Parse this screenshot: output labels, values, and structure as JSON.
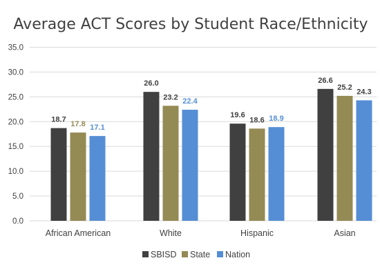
{
  "chart_data": {
    "type": "bar",
    "title": "Average ACT Scores by Student Race/Ethnicity",
    "categories": [
      "African American",
      "White",
      "Hispanic",
      "Asian"
    ],
    "series": [
      {
        "name": "SBISD",
        "values": [
          18.7,
          26.0,
          19.6,
          26.6
        ],
        "labels": [
          "18.7",
          "26.0",
          "19.6",
          "26.6"
        ],
        "color": "#404040",
        "label_color": "#404040"
      },
      {
        "name": "State",
        "values": [
          17.8,
          23.2,
          18.6,
          25.2
        ],
        "labels": [
          "17.8",
          "23.2",
          "18.6",
          "25.2"
        ],
        "color": "#948a54",
        "label_color": "#948a54"
      },
      {
        "name": "Nation",
        "values": [
          17.1,
          22.4,
          18.9,
          24.3
        ],
        "labels": [
          "17.1",
          "22.4",
          "18.9",
          "24.3"
        ],
        "color": "#558ed5",
        "label_color": "#558ed5"
      }
    ],
    "label_colors_override": {
      "SBISD": [
        "#404040",
        "#404040",
        "#404040",
        "#404040"
      ],
      "State": [
        "#948a54",
        "#404040",
        "#404040",
        "#404040"
      ],
      "Nation": [
        "#558ed5",
        "#558ed5",
        "#558ed5",
        "#404040"
      ]
    },
    "yticks": [
      "0.0",
      "5.0",
      "10.0",
      "15.0",
      "20.0",
      "25.0",
      "30.0",
      "35.0"
    ],
    "ylim": [
      0,
      35
    ],
    "grid": true,
    "legend": "bottom"
  }
}
